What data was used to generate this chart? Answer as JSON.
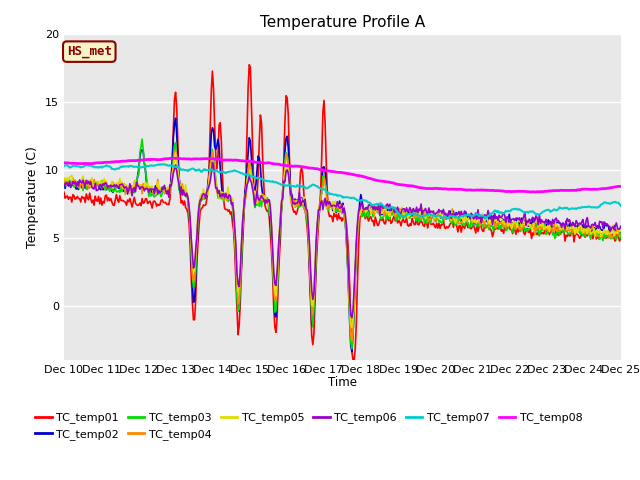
{
  "title": "Temperature Profile A",
  "xlabel": "Time",
  "ylabel": "Temperature (C)",
  "ylim": [
    -4,
    20
  ],
  "background_color": "#e8e8e8",
  "annotation_text": "HS_met",
  "annotation_color": "#8B0000",
  "annotation_bg": "#f5f5c8",
  "series_names": [
    "TC_temp01",
    "TC_temp02",
    "TC_temp03",
    "TC_temp04",
    "TC_temp05",
    "TC_temp06",
    "TC_temp07",
    "TC_temp08"
  ],
  "series_colors": [
    "#ff0000",
    "#0000cc",
    "#00dd00",
    "#ff8800",
    "#dddd00",
    "#9900cc",
    "#00cccc",
    "#ff00ff"
  ],
  "series_lw": [
    1.2,
    1.2,
    1.2,
    1.2,
    1.2,
    1.2,
    1.5,
    2.0
  ],
  "xtick_labels": [
    "Dec 10",
    "Dec 11",
    "Dec 12",
    "Dec 13",
    "Dec 14",
    "Dec 15",
    "Dec 16",
    "Dec 17",
    "Dec 18",
    "Dec 19",
    "Dec 20",
    "Dec 21",
    "Dec 22",
    "Dec 23",
    "Dec 24",
    "Dec 25"
  ],
  "n_points": 500
}
